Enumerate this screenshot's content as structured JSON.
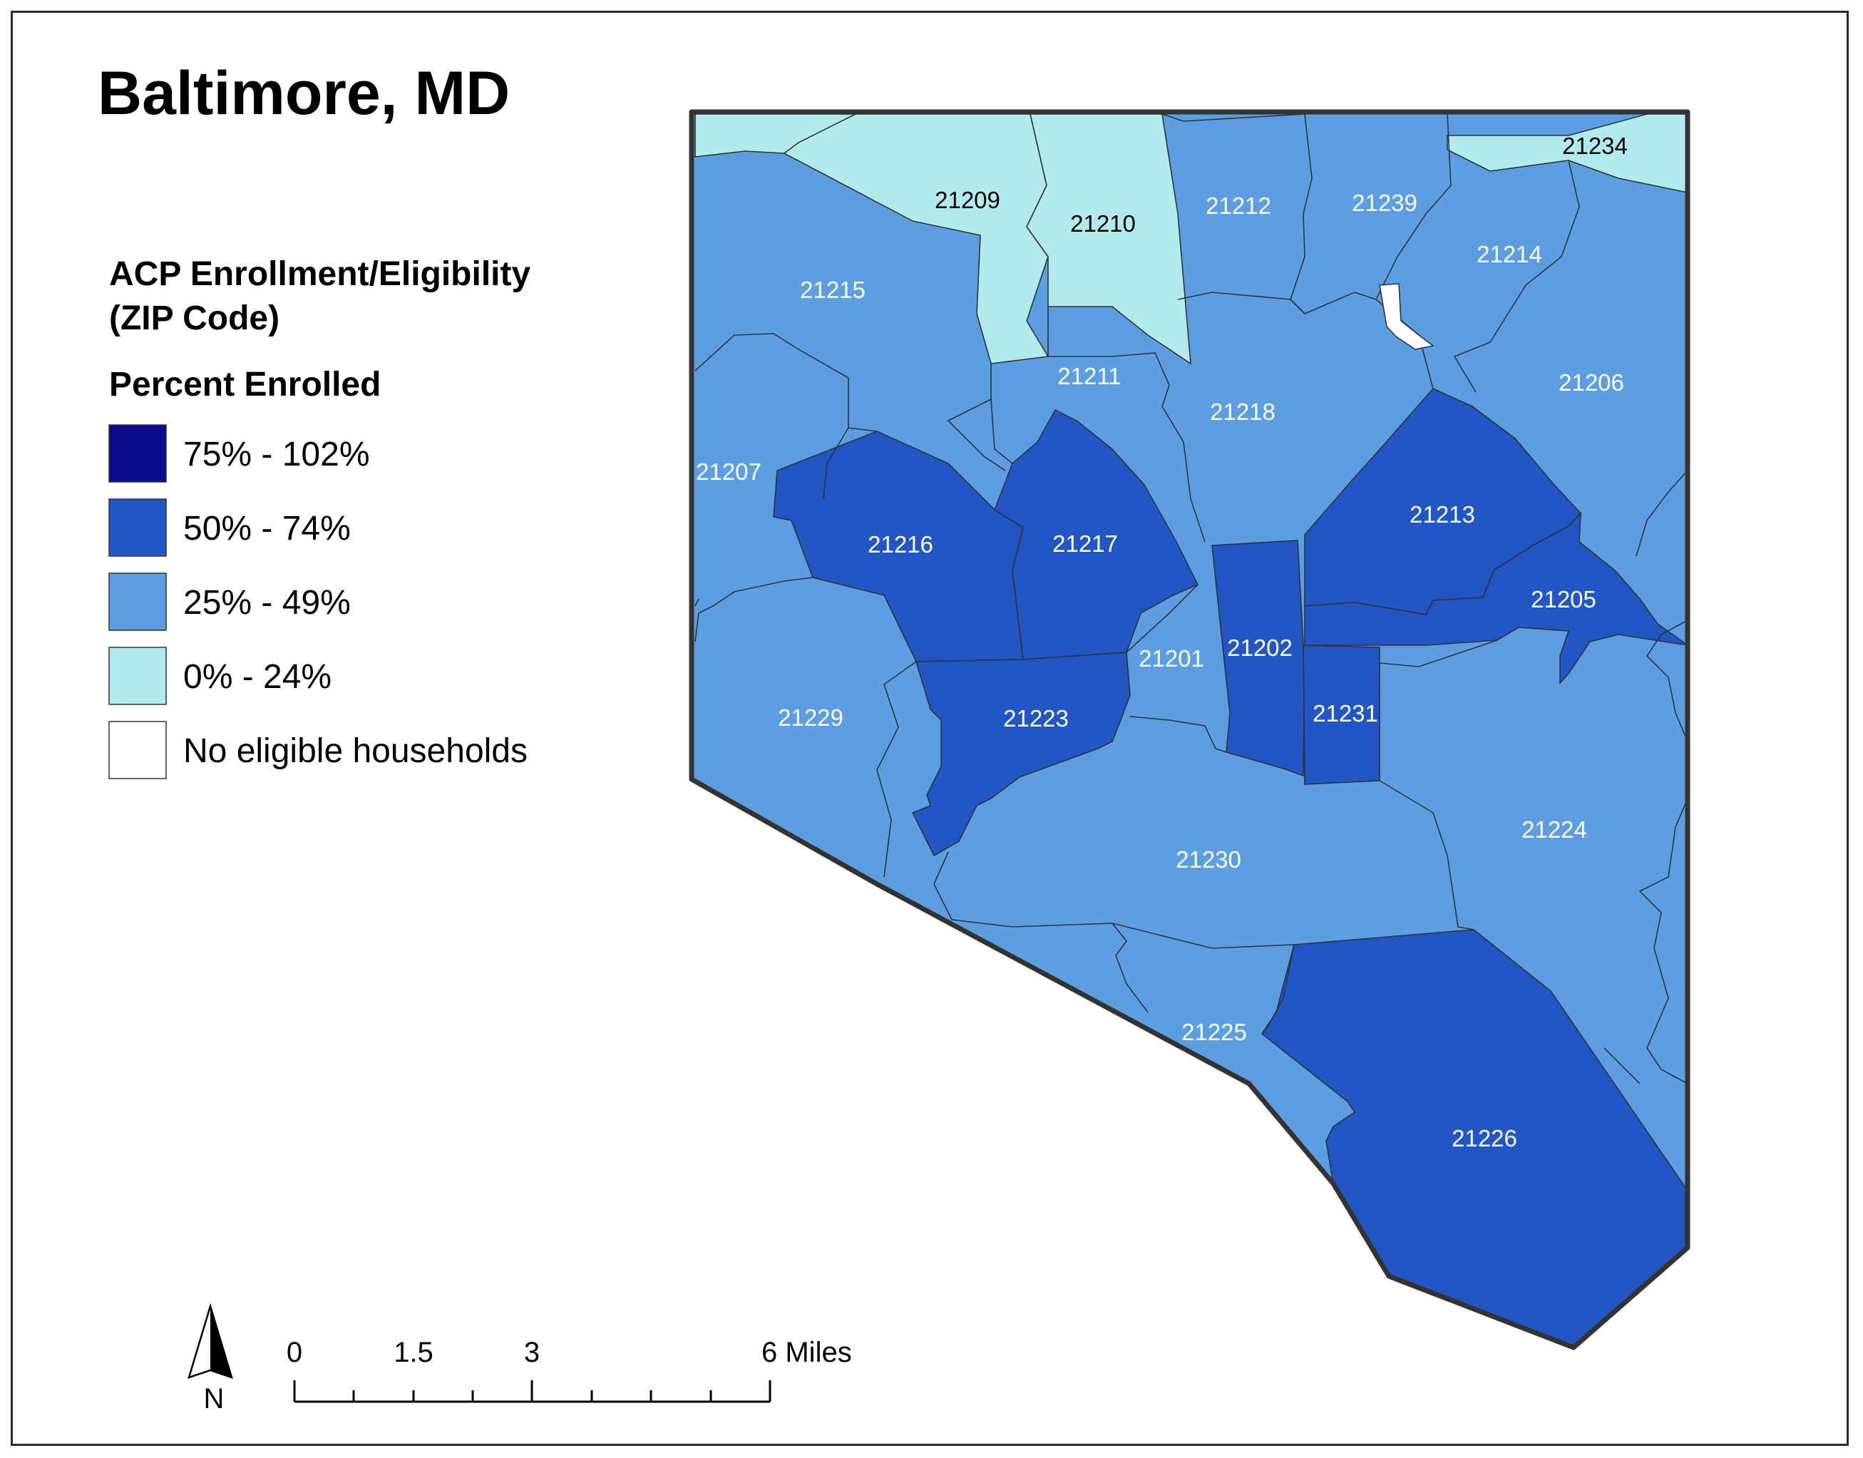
{
  "map": {
    "title": "Baltimore, MD",
    "colors": {
      "class_75_102": "#0a0a8c",
      "class_50_74": "#2156c4",
      "class_25_49": "#5b9fe2",
      "class_0_24": "#b2ebed",
      "no_data": "#ffffff",
      "boundary": "#333333"
    },
    "legend": {
      "heading_line1": "ACP Enrollment/Eligibility",
      "heading_line2": "(ZIP Code)",
      "subheading": "Percent Enrolled",
      "items": [
        {
          "label": "75% - 102%",
          "color": "#0a0a8c"
        },
        {
          "label": "50% - 74%",
          "color": "#2156c4"
        },
        {
          "label": "25% - 49%",
          "color": "#5b9fe2"
        },
        {
          "label": "0% - 24%",
          "color": "#b2ebed"
        },
        {
          "label": "No eligible households",
          "color": "#ffffff"
        }
      ]
    },
    "zips": [
      {
        "zip": "21234",
        "class": "0% - 24%"
      },
      {
        "zip": "21209",
        "class": "0% - 24%"
      },
      {
        "zip": "21210",
        "class": "0% - 24%"
      },
      {
        "zip": "21212",
        "class": "25% - 49%"
      },
      {
        "zip": "21239",
        "class": "25% - 49%"
      },
      {
        "zip": "21214",
        "class": "25% - 49%"
      },
      {
        "zip": "21215",
        "class": "25% - 49%"
      },
      {
        "zip": "21211",
        "class": "25% - 49%"
      },
      {
        "zip": "21218",
        "class": "25% - 49%"
      },
      {
        "zip": "21206",
        "class": "25% - 49%"
      },
      {
        "zip": "21207",
        "class": "25% - 49%"
      },
      {
        "zip": "21216",
        "class": "50% - 74%"
      },
      {
        "zip": "21217",
        "class": "50% - 74%"
      },
      {
        "zip": "21213",
        "class": "50% - 74%"
      },
      {
        "zip": "21205",
        "class": "50% - 74%"
      },
      {
        "zip": "21201",
        "class": "25% - 49%"
      },
      {
        "zip": "21202",
        "class": "50% - 74%"
      },
      {
        "zip": "21231",
        "class": "50% - 74%"
      },
      {
        "zip": "21229",
        "class": "25% - 49%"
      },
      {
        "zip": "21223",
        "class": "50% - 74%"
      },
      {
        "zip": "21224",
        "class": "25% - 49%"
      },
      {
        "zip": "21230",
        "class": "25% - 49%"
      },
      {
        "zip": "21225",
        "class": "25% - 49%"
      },
      {
        "zip": "21226",
        "class": "50% - 74%"
      }
    ],
    "north_arrow_label": "N",
    "scale_bar": {
      "ticks": [
        "0",
        "1.5",
        "3",
        "6 Miles"
      ]
    }
  }
}
